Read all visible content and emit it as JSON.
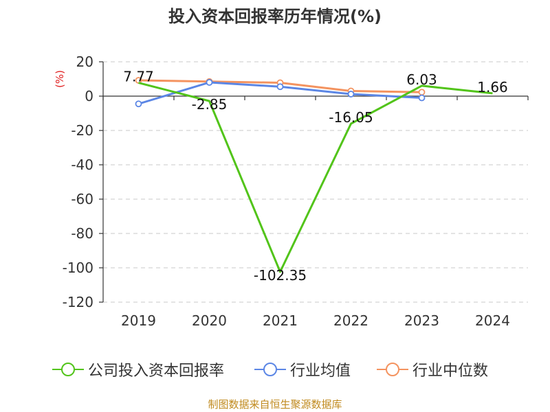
{
  "chart_data": {
    "type": "line",
    "title": "投入资本回报率历年情况(%)",
    "ylabel": "(%)",
    "categories": [
      "2019",
      "2020",
      "2021",
      "2022",
      "2023",
      "2024"
    ],
    "ylim": [
      -120,
      20
    ],
    "yticks": [
      20,
      0,
      -20,
      -40,
      -60,
      -80,
      -100,
      -120
    ],
    "grid": true,
    "legend_position": "bottom",
    "series": [
      {
        "name": "公司投入资本回报率",
        "color": "#52c41a",
        "values": [
          7.77,
          -2.85,
          -102.35,
          -16.05,
          6.03,
          1.66
        ],
        "labels": [
          "7.77",
          "-2.85",
          "-102.35",
          "-16.05",
          "6.03",
          "1.66"
        ]
      },
      {
        "name": "行业均值",
        "color": "#5b86e5",
        "values": [
          -4.5,
          8.0,
          5.5,
          1.2,
          -1.0,
          null
        ]
      },
      {
        "name": "行业中位数",
        "color": "#f4935f",
        "values": [
          9.2,
          8.5,
          7.8,
          3.0,
          2.3,
          null
        ]
      }
    ]
  },
  "footer": "制图数据来自恒生聚源数据库"
}
